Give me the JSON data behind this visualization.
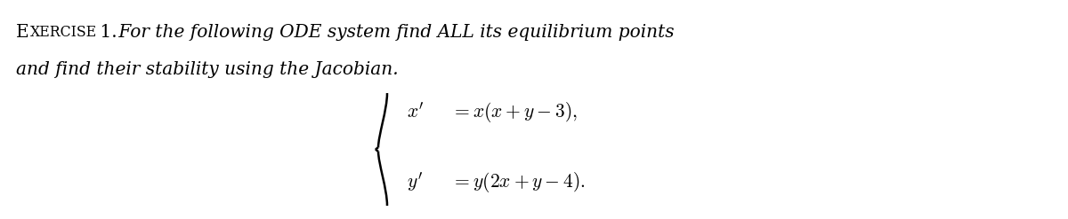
{
  "background_color": "#ffffff",
  "text_color": "#000000",
  "figsize": [
    12.0,
    2.47
  ],
  "dpi": 100,
  "line1_label": "Exercise 1.",
  "line1_rest": " For the following ODE system find ALL its equilibrium points",
  "line2": "and find their stability using the Jacobian.",
  "eq1_lhs": "$x'$",
  "eq1_rhs": "$= x(x + y - 3),$",
  "eq2_lhs": "$y'$",
  "eq2_rhs": "$= y(2x + y - 4).$",
  "font_size_header": 14.5,
  "font_size_eq": 15.5
}
